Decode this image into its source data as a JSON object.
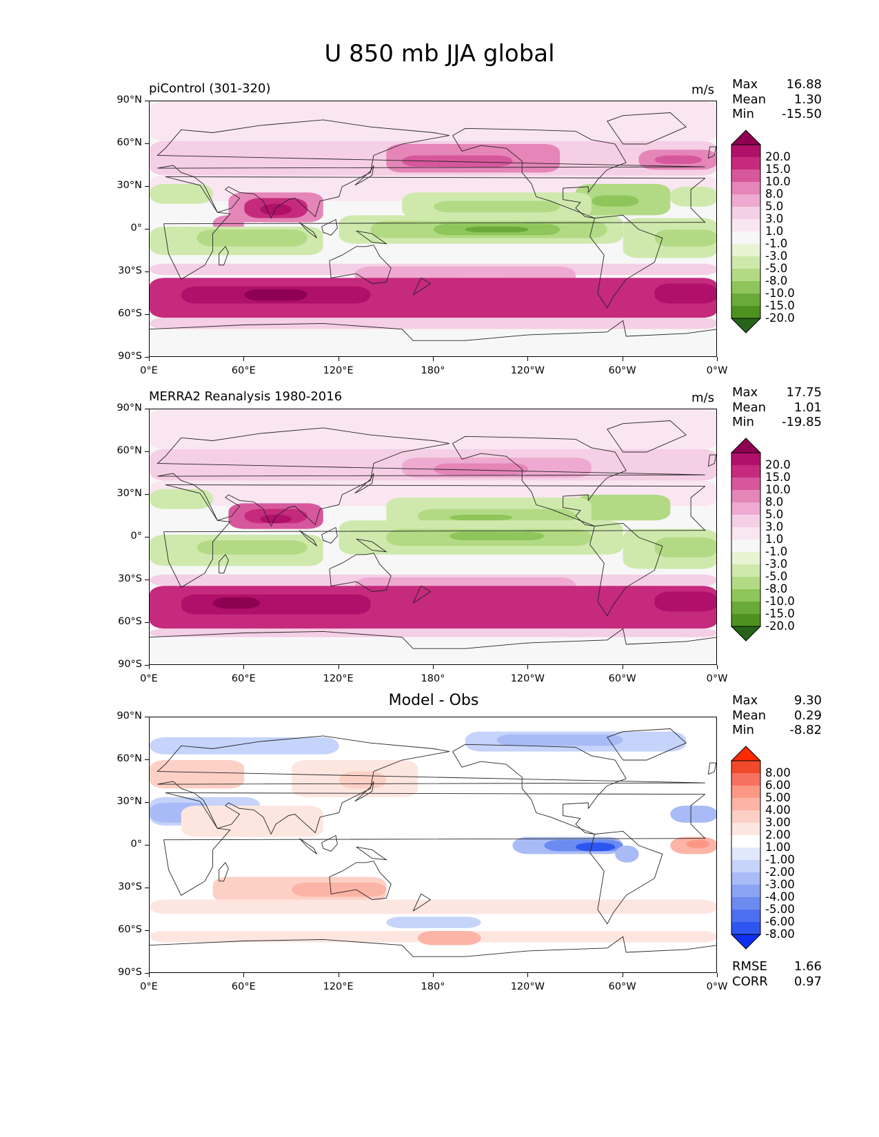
{
  "figure": {
    "title": "U 850 mb JJA global"
  },
  "axes": {
    "yticks": [
      "90°N",
      "60°N",
      "30°N",
      "0°",
      "30°S",
      "60°S",
      "90°S"
    ],
    "xticks": [
      "0°E",
      "60°E",
      "120°E",
      "180°",
      "120°W",
      "60°W",
      "0°W"
    ]
  },
  "panels": [
    {
      "title": "piControl (301-320)",
      "units": "m/s",
      "stats": {
        "max_label": "Max",
        "max": "16.88",
        "mean_label": "Mean",
        "mean": "1.30",
        "min_label": "Min",
        "min": "-15.50"
      },
      "colorbar_labels": [
        "20.0",
        "15.0",
        "10.0",
        "8.0",
        "5.0",
        "3.0",
        "1.0",
        "-1.0",
        "-3.0",
        "-5.0",
        "-8.0",
        "-10.0",
        "-15.0",
        "-20.0"
      ]
    },
    {
      "title": "MERRA2 Reanalysis 1980-2016",
      "units": "m/s",
      "stats": {
        "max_label": "Max",
        "max": "17.75",
        "mean_label": "Mean",
        "mean": "1.01",
        "min_label": "Min",
        "min": "-19.85"
      },
      "colorbar_labels": [
        "20.0",
        "15.0",
        "10.0",
        "8.0",
        "5.0",
        "3.0",
        "1.0",
        "-1.0",
        "-3.0",
        "-5.0",
        "-8.0",
        "-10.0",
        "-15.0",
        "-20.0"
      ]
    },
    {
      "title": "Model - Obs",
      "stats": {
        "max_label": "Max",
        "max": "9.30",
        "mean_label": "Mean",
        "mean": "0.29",
        "min_label": "Min",
        "min": "-8.82"
      },
      "colorbar_labels": [
        "8.00",
        "6.00",
        "5.00",
        "4.00",
        "3.00",
        "2.00",
        "1.00",
        "-1.00",
        "-2.00",
        "-3.00",
        "-4.00",
        "-5.00",
        "-6.00",
        "-8.00"
      ],
      "metrics": {
        "rmse_label": "RMSE",
        "rmse": "1.66",
        "corr_label": "CORR",
        "corr": "0.97"
      }
    }
  ],
  "colors": {
    "pink_green": [
      "#8e0152",
      "#b0106a",
      "#c52a7d",
      "#d7579d",
      "#e585b8",
      "#eeaad0",
      "#f5cfe5",
      "#f9e6f0",
      "#f7f7f7",
      "#e7f3d3",
      "#cfe9ad",
      "#b2da84",
      "#8fc65b",
      "#6aaa3a",
      "#4d9221",
      "#276419"
    ],
    "blue_red": [
      "#ff2a00",
      "#f04a2a",
      "#f77060",
      "#fb9885",
      "#fcb4a6",
      "#fdd0c6",
      "#fde6e0",
      "#ffffff",
      "#e2e8fb",
      "#c6d3fa",
      "#a8bbf6",
      "#8aa3f3",
      "#6b8bf0",
      "#4d6ff0",
      "#2d55ef",
      "#0f2ff0"
    ]
  }
}
